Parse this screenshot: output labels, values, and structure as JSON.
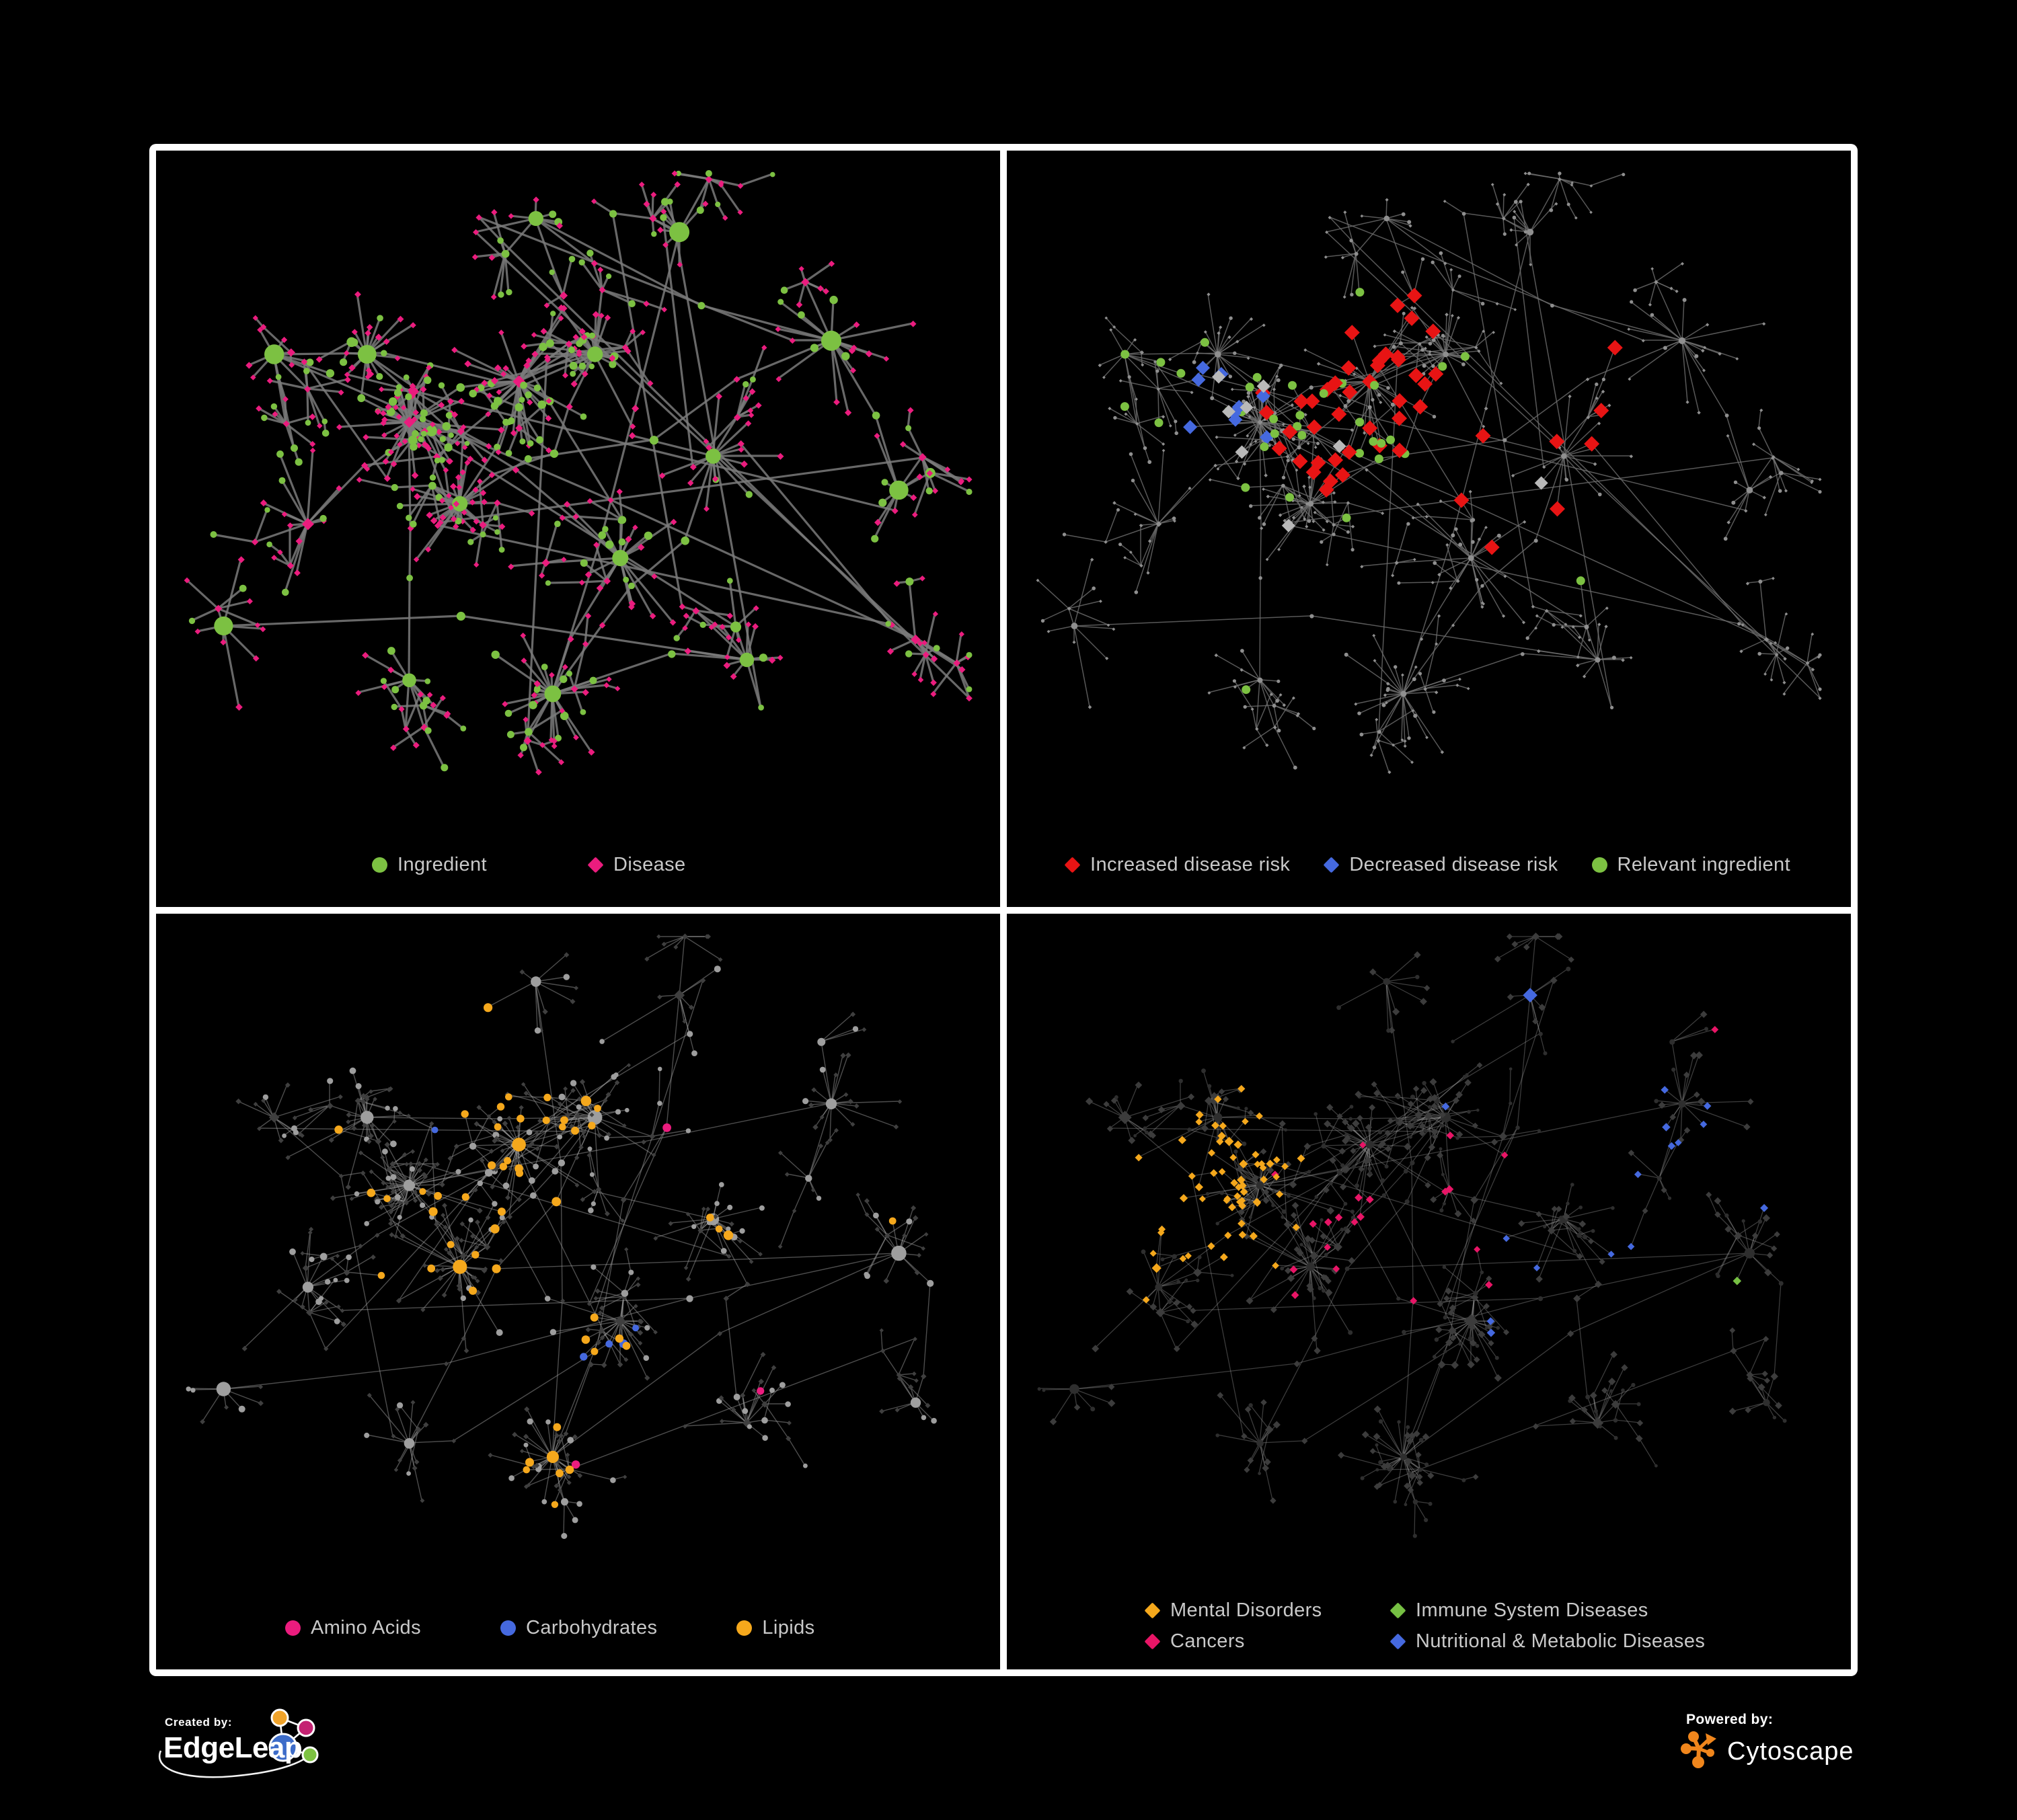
{
  "figure": {
    "background": "#000000",
    "frame_color": "#ffffff",
    "panel_background": "#000000",
    "legend_text_color": "#c9c9c9"
  },
  "panels": [
    {
      "id": "ingredient-disease",
      "edge_color": "#7b7b7b",
      "base_colors": {
        "circle": "#7cc142",
        "diamond": "#eb1c7e"
      },
      "legend": [
        {
          "label": "Ingredient",
          "shape": "circle",
          "color": "#7cc142"
        },
        {
          "label": "Disease",
          "shape": "diamond",
          "color": "#eb1c7e"
        }
      ]
    },
    {
      "id": "disease-risk",
      "edge_color": "#6f6f6f",
      "base_colors": {
        "circle": "#8f8f8f",
        "diamond": "#8f8f8f"
      },
      "neutral_color": "#b9b9b9",
      "legend": [
        {
          "label": "Increased disease risk",
          "shape": "diamond",
          "color": "#e81414"
        },
        {
          "label": "Decreased disease risk",
          "shape": "diamond",
          "color": "#4569df"
        },
        {
          "label": "Relevant ingredient",
          "shape": "circle",
          "color": "#7cc142"
        }
      ]
    },
    {
      "id": "nutrient-classes",
      "edge_color": "#9a9a9a",
      "base_colors": {
        "circle": "#9e9e9e",
        "diamond": "#3f3f3f"
      },
      "legend": [
        {
          "label": "Amino Acids",
          "shape": "circle",
          "color": "#eb1c7e"
        },
        {
          "label": "Carbohydrates",
          "shape": "circle",
          "color": "#4569df"
        },
        {
          "label": "Lipids",
          "shape": "circle",
          "color": "#f5a81c"
        }
      ]
    },
    {
      "id": "disease-classes",
      "edge_color": "#9a9a9a",
      "base_colors": {
        "circle": "#2e2e2e",
        "diamond": "#3c3c3c"
      },
      "legend": [
        {
          "label": "Mental Disorders",
          "shape": "diamond",
          "color": "#f5a81c"
        },
        {
          "label": "Immune System Diseases",
          "shape": "diamond",
          "color": "#76c043"
        },
        {
          "label": "Cancers",
          "shape": "diamond",
          "color": "#e81566"
        },
        {
          "label": "Nutritional & Metabolic Diseases",
          "shape": "diamond",
          "color": "#4569df"
        }
      ]
    }
  ],
  "network_summary": {
    "type": "network",
    "node_shape_meaning": {
      "circle": "ingredient",
      "diamond": "disease"
    },
    "approx_nodes_per_panel": 600,
    "approx_edges_per_panel": 620,
    "layout": "organic force-directed, dense central mass with radiating starburst clusters and chains"
  },
  "footer": {
    "created_by_label": "Created by:",
    "created_by_brand": "EdgeLeap",
    "powered_by_label": "Powered by:",
    "powered_by_brand": "Cytoscape",
    "edgeleap_colors": {
      "orange": "#f0a32a",
      "magenta": "#c42272",
      "blue": "#3d6cc9",
      "green": "#7dc242"
    },
    "cytoscape_color": "#f0861c"
  }
}
